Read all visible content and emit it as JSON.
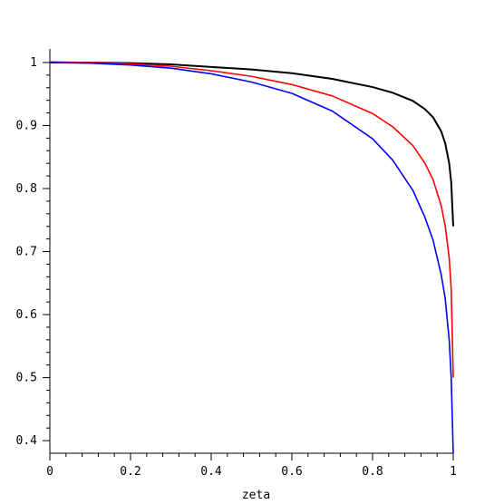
{
  "chart_data": {
    "type": "line",
    "title": "",
    "xlabel": "zeta",
    "ylabel": "",
    "xlim": [
      0,
      1
    ],
    "ylim": [
      0.38,
      1.01
    ],
    "grid": false,
    "x_ticks": [
      {
        "value": 0,
        "label": "0"
      },
      {
        "value": 0.2,
        "label": "0.2"
      },
      {
        "value": 0.4,
        "label": "0.4"
      },
      {
        "value": 0.6,
        "label": "0.6"
      },
      {
        "value": 0.8,
        "label": "0.8"
      },
      {
        "value": 1,
        "label": "1"
      }
    ],
    "y_ticks": [
      {
        "value": 0.4,
        "label": "0.4"
      },
      {
        "value": 0.5,
        "label": "0.5"
      },
      {
        "value": 0.6,
        "label": "0.6"
      },
      {
        "value": 0.7,
        "label": "0.7"
      },
      {
        "value": 0.8,
        "label": "0.8"
      },
      {
        "value": 0.9,
        "label": "0.9"
      },
      {
        "value": 1,
        "label": "1"
      }
    ],
    "series": [
      {
        "color": "#000000",
        "x": [
          0,
          0.1,
          0.2,
          0.3,
          0.4,
          0.5,
          0.6,
          0.7,
          0.8,
          0.85,
          0.9,
          0.93,
          0.95,
          0.97,
          0.98,
          0.99,
          0.995,
          1.0
        ],
        "y": [
          1.0,
          1.0,
          0.999,
          0.997,
          0.993,
          0.989,
          0.983,
          0.974,
          0.961,
          0.952,
          0.939,
          0.926,
          0.913,
          0.891,
          0.872,
          0.84,
          0.81,
          0.74
        ]
      },
      {
        "color": "#ff0000",
        "x": [
          0,
          0.1,
          0.2,
          0.3,
          0.4,
          0.5,
          0.6,
          0.7,
          0.8,
          0.85,
          0.9,
          0.93,
          0.95,
          0.97,
          0.98,
          0.99,
          0.995,
          1.0
        ],
        "y": [
          1.001,
          1.0,
          0.998,
          0.994,
          0.987,
          0.978,
          0.965,
          0.947,
          0.919,
          0.898,
          0.868,
          0.84,
          0.814,
          0.773,
          0.741,
          0.69,
          0.64,
          0.5
        ]
      },
      {
        "color": "#0000ff",
        "x": [
          0,
          0.1,
          0.2,
          0.3,
          0.4,
          0.5,
          0.6,
          0.7,
          0.8,
          0.85,
          0.9,
          0.93,
          0.95,
          0.97,
          0.98,
          0.99,
          0.995,
          1.0
        ],
        "y": [
          1.0,
          0.999,
          0.996,
          0.991,
          0.982,
          0.969,
          0.951,
          0.923,
          0.879,
          0.845,
          0.797,
          0.754,
          0.718,
          0.664,
          0.626,
          0.56,
          0.5,
          0.38
        ]
      }
    ]
  }
}
